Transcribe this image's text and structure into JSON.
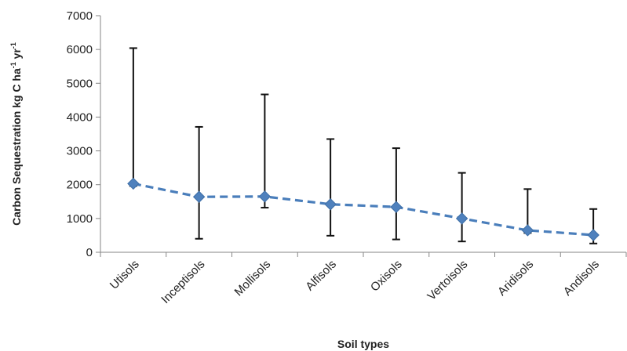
{
  "chart_data": {
    "type": "line",
    "categories": [
      "Utisols",
      "Inceptisols",
      "Mollisols",
      "Alfisols",
      "Oxisols",
      "Vertoisols",
      "Aridisols",
      "Andisols"
    ],
    "series": [
      {
        "values": [
          2030,
          1640,
          1650,
          1420,
          1340,
          1000,
          650,
          510
        ],
        "error_upper": [
          6040,
          3710,
          4670,
          3350,
          3080,
          2350,
          1870,
          1280
        ],
        "error_lower": [
          1960,
          400,
          1320,
          490,
          380,
          320,
          570,
          260
        ]
      }
    ],
    "ylim": [
      0,
      7000
    ],
    "yticks": [
      0,
      1000,
      2000,
      3000,
      4000,
      5000,
      6000,
      7000
    ],
    "xlabel": "Soil types",
    "ylabel": {
      "main": "Carbon Sequestration kg C ha",
      "sup1": "-1",
      "mid": " yr",
      "sup2": "-1"
    },
    "grid": false,
    "legend": "none",
    "colors": {
      "series": "#4a7ebb",
      "marker": "#4f81bd",
      "error_bar": "#111111",
      "axis": "#868686"
    }
  }
}
